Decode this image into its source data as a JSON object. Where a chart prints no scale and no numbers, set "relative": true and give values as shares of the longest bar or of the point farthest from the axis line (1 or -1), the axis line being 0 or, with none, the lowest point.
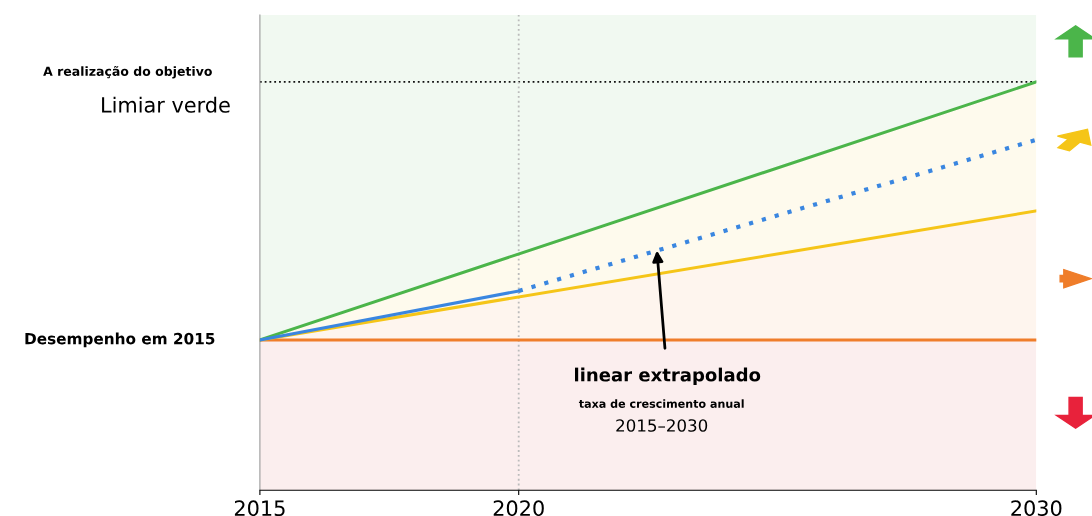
{
  "chart_data": {
    "type": "line",
    "relative": true,
    "xlim": [
      2015,
      2030
    ],
    "xticks": [
      2015,
      2020,
      2030
    ],
    "series": [
      {
        "color": "#ef7d2a",
        "x": [
          2015,
          2030
        ],
        "values": [
          0.368,
          0.368
        ],
        "lower": [
          0.368,
          0.368
        ],
        "upper": [
          0.368,
          0.684
        ]
      },
      {
        "color": "#f5c518",
        "x": [
          2015,
          2030
        ],
        "values": [
          0.368,
          0.684
        ],
        "lower": [
          0.368,
          0.684
        ],
        "upper": [
          0.368,
          1.0
        ]
      },
      {
        "color": "#4bb54a",
        "x": [
          2015,
          2030
        ],
        "values": [
          0.368,
          1.0
        ],
        "lower": [
          0.368,
          1.0
        ],
        "upper": [
          1.164,
          1.164
        ]
      },
      {
        "color": "#3a86e0",
        "x": [
          2015,
          2020
        ],
        "values": [
          0.368,
          0.488
        ]
      },
      {
        "color": "#3a86e0",
        "x": [
          2020,
          2030
        ],
        "values": [
          0.488,
          0.858
        ],
        "line_style": "dotted"
      }
    ],
    "bands": [
      {
        "axis": "y",
        "from": 0,
        "to": 0.368,
        "color": "#fbeeee"
      }
    ],
    "ref_lines": [
      {
        "axis": "y",
        "value": 1.0,
        "label": "Limiar verde",
        "color": "#111111",
        "line_style": "dotted"
      },
      {
        "axis": "x",
        "value": 2020,
        "color": "#bbbbbb",
        "line_style": "dotted"
      }
    ],
    "annotations": [
      "A realização do objetivo",
      {
        "text": "Desempenho em 2015",
        "x": 2015,
        "y": 0.368
      },
      {
        "text": "linear extrapolado",
        "x": 2022.67,
        "y": 0.587
      },
      "taxa de crescimento anual",
      "2015–2030"
    ],
    "grid": false,
    "legend": false
  }
}
